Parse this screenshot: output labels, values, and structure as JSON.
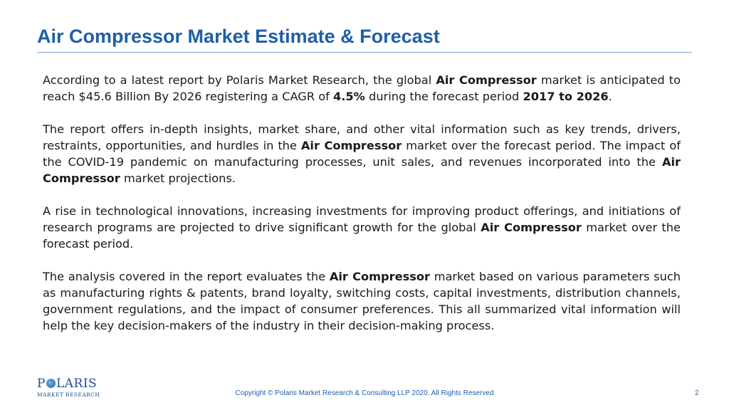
{
  "slide": {
    "title": "Air Compressor Market Estimate & Forecast",
    "paragraph1": {
      "t1": "According to a latest report by Polaris Market Research, the global ",
      "b1": "Air Compressor",
      "t2": " market is anticipated to reach $45.6 Billion By 2026 registering a CAGR of ",
      "b2": "4.5%",
      "t3": " during the  forecast period ",
      "b3": "2017 to 2026",
      "t4": "."
    },
    "paragraph2": {
      "t1": "The report offers in-depth insights, market share, and other vital information such as key trends, drivers, restraints, opportunities, and hurdles in the ",
      "b1": "Air Compressor",
      "t2": " market over the forecast period. The impact of the COVID-19 pandemic on manufacturing processes, unit sales, and revenues incorporated into the  ",
      "b2": "Air Compressor",
      "t3": " market projections."
    },
    "paragraph3": {
      "t1": "A rise in technological innovations, increasing investments for improving product offerings, and initiations of research programs are projected to drive significant growth for the global ",
      "b1": "Air Compressor",
      "t2": " market over the forecast period."
    },
    "paragraph4": {
      "t1": "The analysis covered in the report evaluates the ",
      "b1": "Air Compressor",
      "t2": " market based on various parameters such as manufacturing rights & patents, brand loyalty, switching costs,  capital investments, distribution channels, government regulations, and the impact of consumer preferences. This all summarized vital information will help the key decision-makers of the industry in their decision-making process."
    },
    "logo": {
      "main_before": "P",
      "main_after": "LARIS",
      "sub": "MARKET RESEARCH"
    },
    "footer": {
      "copyright": "Copyright © Polaris Market Research & Consulting LLP 2020. All Rights Reserved",
      "page_number": "2"
    },
    "colors": {
      "title": "#1f5fa8",
      "rule": "#7aa6d4",
      "footer": "#1f5fa8"
    }
  }
}
